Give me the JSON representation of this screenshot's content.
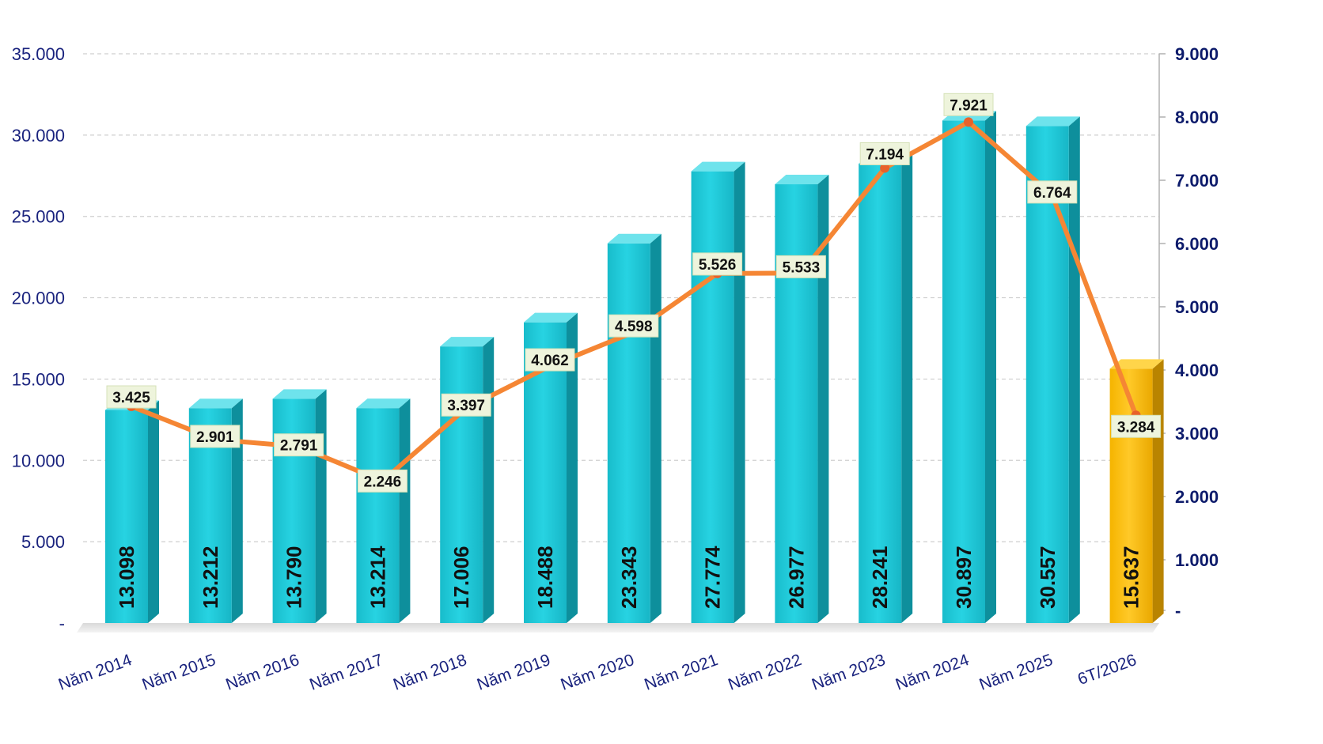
{
  "chart_data": {
    "type": "bar",
    "categories": [
      "Năm 2014",
      "Năm 2015",
      "Năm 2016",
      "Năm 2017",
      "Năm 2018",
      "Năm 2019",
      "Năm 2020",
      "Năm 2021",
      "Năm 2022",
      "Năm 2023",
      "Năm 2024",
      "Năm 2025",
      "6T/2026"
    ],
    "series": [
      {
        "kind": "bar",
        "axis": "left",
        "values": [
          13098,
          13212,
          13790,
          13214,
          17006,
          18488,
          23343,
          27774,
          26977,
          28241,
          30897,
          30557,
          15637
        ],
        "labels": [
          "13.098",
          "13.212",
          "13.790",
          "13.214",
          "17.006",
          "18.488",
          "23.343",
          "27.774",
          "26.977",
          "28.241",
          "30.897",
          "30.557",
          "15.637"
        ],
        "color": "#1fc8d8",
        "highlight_color": "#ffbf00",
        "highlight_index": 12
      },
      {
        "kind": "line",
        "axis": "right",
        "values": [
          3425,
          2901,
          2791,
          2246,
          3397,
          4062,
          4598,
          5526,
          5533,
          7194,
          7921,
          6764,
          3284
        ],
        "labels": [
          "3.425",
          "2.901",
          "2.791",
          "2.246",
          "3.397",
          "4.062",
          "4.598",
          "5.526",
          "5.533",
          "7.194",
          "7.921",
          "6.764",
          "3.284"
        ],
        "color": "#f58634"
      }
    ],
    "title": "",
    "xlabel": "",
    "ylabel": "",
    "ylim": [
      0,
      35000
    ],
    "y2lim": [
      0,
      9000
    ],
    "y_ticks": [
      "-",
      "5.000",
      "10.000",
      "15.000",
      "20.000",
      "25.000",
      "30.000",
      "35.000"
    ],
    "y2_ticks": [
      "-",
      "1.000",
      "2.000",
      "3.000",
      "4.000",
      "5.000",
      "6.000",
      "7.000",
      "8.000",
      "9.000"
    ],
    "grid": true,
    "legend": "none"
  }
}
